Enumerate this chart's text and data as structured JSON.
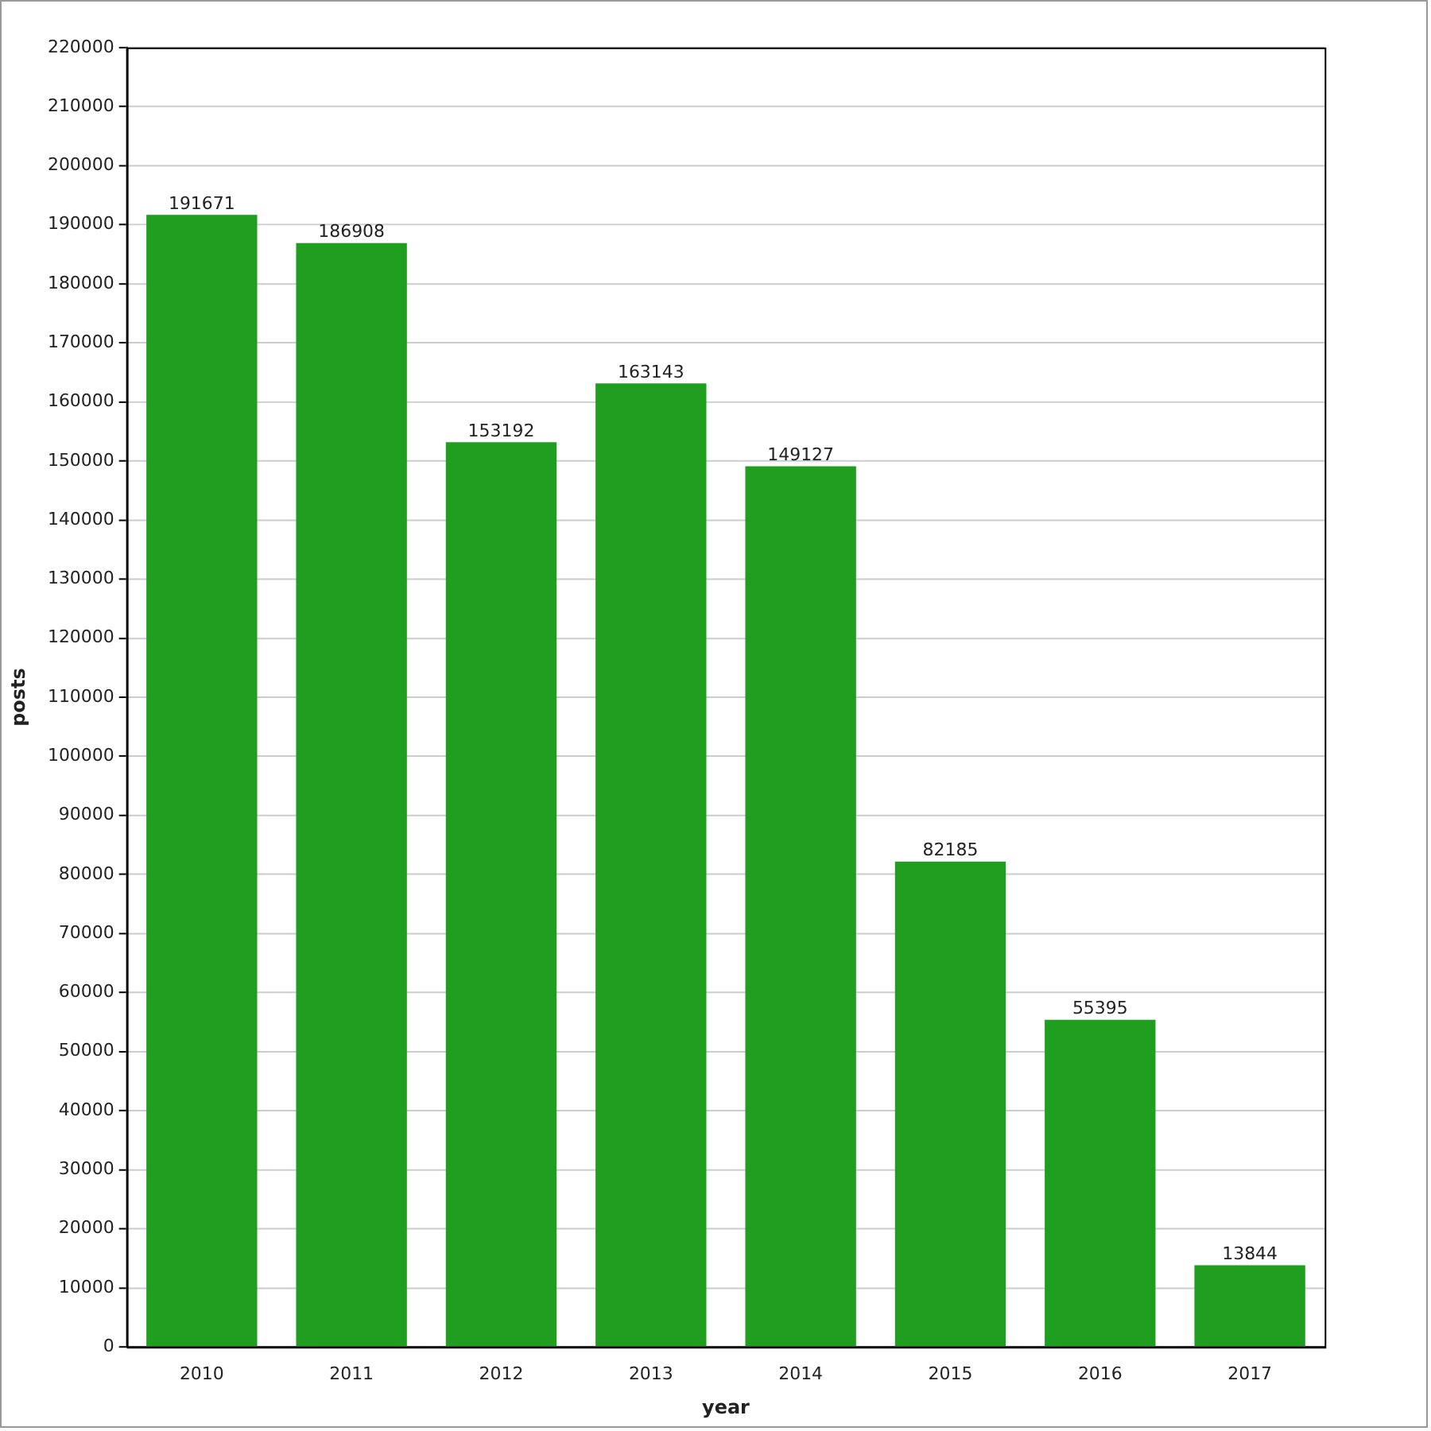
{
  "chart_data": {
    "type": "bar",
    "xlabel": "year",
    "ylabel": "posts",
    "categories": [
      "2010",
      "2011",
      "2012",
      "2013",
      "2014",
      "2015",
      "2016",
      "2017"
    ],
    "values": [
      191671,
      186908,
      153192,
      163143,
      149127,
      82185,
      55395,
      13844
    ],
    "color": "#1f9e1f",
    "ylim": [
      0,
      220000
    ],
    "yticks": [
      0,
      10000,
      20000,
      30000,
      40000,
      50000,
      60000,
      70000,
      80000,
      90000,
      100000,
      110000,
      120000,
      130000,
      140000,
      150000,
      160000,
      170000,
      180000,
      190000,
      200000,
      210000,
      220000
    ],
    "grid": "y",
    "data_labels": true,
    "legend": false
  }
}
